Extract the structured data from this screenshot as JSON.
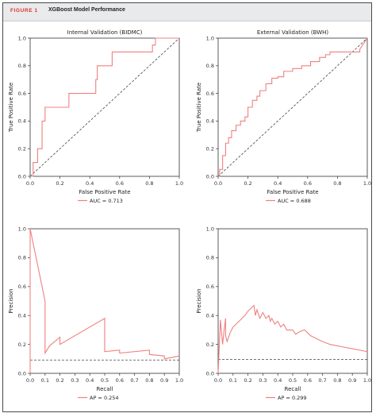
{
  "figure": {
    "label": "FIGURE 1",
    "title": "XGBoost Model Performance",
    "accent_color": "#e0312d",
    "curve_color": "#f08080",
    "baseline_color": "#444444"
  },
  "chart_data": [
    {
      "type": "line",
      "title": "Internal Validation (BIDMC)",
      "xlabel": "False Positive Rate",
      "ylabel": "True Positive Rate",
      "xlim": [
        0,
        1
      ],
      "ylim": [
        0,
        1
      ],
      "xticks": [
        "0.0",
        "0.2",
        "0.4",
        "0.6",
        "0.8",
        "1.0"
      ],
      "yticks": [
        "0.0",
        "0.2",
        "0.4",
        "0.6",
        "0.8",
        "1.0"
      ],
      "baseline": [
        [
          0,
          0
        ],
        [
          1,
          1
        ]
      ],
      "legend": "AUC = 0.713",
      "legend_position": "bottom-center",
      "series": [
        {
          "x": [
            0.0,
            0.02,
            0.02,
            0.05,
            0.05,
            0.08,
            0.08,
            0.1,
            0.1,
            0.26,
            0.26,
            0.44,
            0.44,
            0.45,
            0.45,
            0.5,
            0.5,
            0.55,
            0.55,
            0.82,
            0.82,
            0.84,
            0.84,
            1.0
          ],
          "y": [
            0.0,
            0.0,
            0.1,
            0.1,
            0.2,
            0.2,
            0.4,
            0.4,
            0.5,
            0.5,
            0.6,
            0.6,
            0.7,
            0.7,
            0.8,
            0.8,
            0.8,
            0.8,
            0.9,
            0.9,
            0.95,
            0.95,
            1.0,
            1.0
          ]
        }
      ]
    },
    {
      "type": "line",
      "title": "External Validation (BWH)",
      "xlabel": "False Positive Rate",
      "ylabel": "True Positive Rate",
      "xlim": [
        0,
        1
      ],
      "ylim": [
        0,
        1
      ],
      "xticks": [
        "0.0",
        "0.2",
        "0.4",
        "0.6",
        "0.8",
        "1.0"
      ],
      "yticks": [
        "0.0",
        "0.2",
        "0.4",
        "0.6",
        "0.8",
        "1.0"
      ],
      "baseline": [
        [
          0,
          0
        ],
        [
          1,
          1
        ]
      ],
      "legend": "AUC = 0.688",
      "legend_position": "bottom-center",
      "series": [
        {
          "x": [
            0.0,
            0.01,
            0.01,
            0.03,
            0.03,
            0.05,
            0.05,
            0.07,
            0.07,
            0.09,
            0.09,
            0.12,
            0.12,
            0.15,
            0.15,
            0.18,
            0.18,
            0.2,
            0.2,
            0.23,
            0.23,
            0.26,
            0.26,
            0.28,
            0.28,
            0.32,
            0.32,
            0.36,
            0.36,
            0.4,
            0.4,
            0.44,
            0.44,
            0.5,
            0.5,
            0.56,
            0.56,
            0.62,
            0.62,
            0.68,
            0.68,
            0.72,
            0.72,
            0.75,
            0.75,
            0.95,
            0.95,
            1.0
          ],
          "y": [
            0.0,
            0.0,
            0.05,
            0.05,
            0.15,
            0.15,
            0.24,
            0.24,
            0.28,
            0.28,
            0.33,
            0.33,
            0.37,
            0.37,
            0.4,
            0.4,
            0.43,
            0.43,
            0.5,
            0.5,
            0.55,
            0.55,
            0.58,
            0.58,
            0.62,
            0.62,
            0.67,
            0.67,
            0.71,
            0.71,
            0.72,
            0.72,
            0.76,
            0.76,
            0.78,
            0.78,
            0.8,
            0.8,
            0.83,
            0.83,
            0.86,
            0.86,
            0.88,
            0.88,
            0.9,
            0.9,
            0.92,
            1.0
          ]
        }
      ]
    },
    {
      "type": "line",
      "title": "",
      "xlabel": "Recall",
      "ylabel": "Precision",
      "xlim": [
        0,
        1
      ],
      "ylim": [
        0,
        1
      ],
      "xticks": [
        "0.0",
        "0.1",
        "0.2",
        "0.3",
        "0.4",
        "0.5",
        "0.6",
        "0.7",
        "0.8",
        "0.9",
        "1.0"
      ],
      "yticks": [
        "0.0",
        "0.2",
        "0.4",
        "0.6",
        "0.8",
        "1.0"
      ],
      "baseline_y": 0.092,
      "legend": "AP = 0.254",
      "legend_position": "bottom-center",
      "series": [
        {
          "x": [
            0.0,
            0.0,
            0.1,
            0.1,
            0.13,
            0.2,
            0.2,
            0.5,
            0.5,
            0.6,
            0.6,
            0.8,
            0.8,
            0.9,
            0.9,
            1.0
          ],
          "y": [
            0.0,
            1.0,
            0.5,
            0.14,
            0.19,
            0.25,
            0.2,
            0.38,
            0.15,
            0.16,
            0.14,
            0.16,
            0.13,
            0.12,
            0.1,
            0.12
          ]
        }
      ]
    },
    {
      "type": "line",
      "title": "",
      "xlabel": "Recall",
      "ylabel": "Precision",
      "xlim": [
        0,
        1
      ],
      "ylim": [
        0,
        1
      ],
      "xticks": [
        "0.0",
        "0.1",
        "0.2",
        "0.3",
        "0.4",
        "0.5",
        "0.6",
        "0.7",
        "0.8",
        "0.9",
        "1.0"
      ],
      "yticks": [
        "0.0",
        "0.2",
        "0.4",
        "0.6",
        "0.8",
        "1.0"
      ],
      "baseline_y": 0.097,
      "legend": "AP = 0.299",
      "legend_position": "bottom-center",
      "series": [
        {
          "x": [
            0.0,
            0.0,
            0.015,
            0.03,
            0.04,
            0.05,
            0.05,
            0.06,
            0.08,
            0.1,
            0.12,
            0.15,
            0.18,
            0.2,
            0.22,
            0.24,
            0.25,
            0.26,
            0.28,
            0.3,
            0.32,
            0.34,
            0.35,
            0.36,
            0.38,
            0.4,
            0.42,
            0.44,
            0.46,
            0.5,
            0.52,
            0.55,
            0.58,
            0.62,
            0.66,
            0.7,
            0.75,
            0.8,
            0.85,
            0.9,
            0.95,
            1.0
          ],
          "y": [
            0.0,
            0.0,
            0.37,
            0.2,
            0.3,
            0.38,
            0.26,
            0.22,
            0.28,
            0.32,
            0.34,
            0.37,
            0.4,
            0.43,
            0.45,
            0.47,
            0.4,
            0.44,
            0.38,
            0.42,
            0.38,
            0.4,
            0.36,
            0.38,
            0.34,
            0.36,
            0.32,
            0.34,
            0.3,
            0.3,
            0.27,
            0.29,
            0.3,
            0.26,
            0.24,
            0.22,
            0.2,
            0.19,
            0.18,
            0.17,
            0.16,
            0.15
          ]
        }
      ]
    }
  ]
}
